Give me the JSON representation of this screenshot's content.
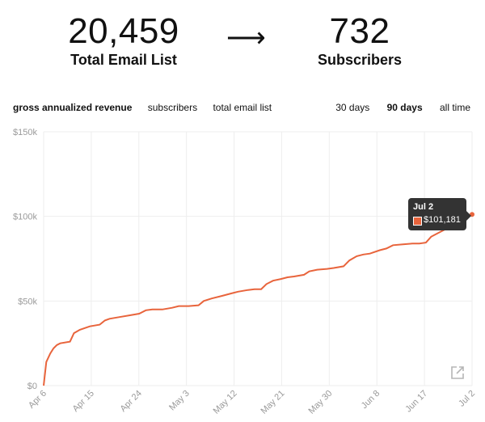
{
  "stats": {
    "left": {
      "value": "20,459",
      "label": "Total Email List"
    },
    "arrow": "⟶",
    "right": {
      "value": "732",
      "label": "Subscribers"
    }
  },
  "metric_tabs": [
    {
      "label": "gross annualized revenue",
      "active": true
    },
    {
      "label": "subscribers",
      "active": false
    },
    {
      "label": "total email list",
      "active": false
    }
  ],
  "range_tabs": [
    {
      "label": "30 days",
      "active": false
    },
    {
      "label": "90 days",
      "active": true
    },
    {
      "label": "all time",
      "active": false
    }
  ],
  "tooltip": {
    "date": "Jul 2",
    "value": "$101,181"
  },
  "colors": {
    "line": "#e8643c",
    "grid": "#eeeeee",
    "tooltip_bg": "#333333"
  },
  "icons": {
    "expand": "external-expand-icon"
  },
  "chart_data": {
    "type": "line",
    "ylim": [
      0,
      150000
    ],
    "y_ticks": [
      {
        "value": 0,
        "label": "$0"
      },
      {
        "value": 50000,
        "label": "$50k"
      },
      {
        "value": 100000,
        "label": "$100k"
      },
      {
        "value": 150000,
        "label": "$150k"
      }
    ],
    "x_ticks": [
      "Apr 6",
      "Apr 15",
      "Apr 24",
      "May 3",
      "May 12",
      "May 21",
      "May 30",
      "Jun 8",
      "Jun 17",
      "Jul 2"
    ],
    "grid": true,
    "series": [
      {
        "values": [
          [
            0,
            0
          ],
          [
            0.4,
            14000
          ],
          [
            1,
            19000
          ],
          [
            1.5,
            22000
          ],
          [
            2,
            24000
          ],
          [
            2.5,
            25000
          ],
          [
            4,
            26000
          ],
          [
            4.6,
            31000
          ],
          [
            5.5,
            33000
          ],
          [
            7,
            35000
          ],
          [
            8.5,
            36000
          ],
          [
            9.3,
            38500
          ],
          [
            10,
            39500
          ],
          [
            11.5,
            40500
          ],
          [
            13,
            41500
          ],
          [
            14.5,
            42500
          ],
          [
            15.5,
            44500
          ],
          [
            16.5,
            45000
          ],
          [
            18,
            45000
          ],
          [
            19.5,
            46000
          ],
          [
            20.5,
            47000
          ],
          [
            22,
            47000
          ],
          [
            23.5,
            47500
          ],
          [
            24.3,
            50000
          ],
          [
            25.5,
            51500
          ],
          [
            27,
            53000
          ],
          [
            28.5,
            54500
          ],
          [
            29.5,
            55500
          ],
          [
            31,
            56500
          ],
          [
            32,
            57000
          ],
          [
            33,
            57000
          ],
          [
            33.8,
            60000
          ],
          [
            34.8,
            62000
          ],
          [
            36,
            63000
          ],
          [
            37,
            64000
          ],
          [
            38,
            64500
          ],
          [
            39.5,
            65500
          ],
          [
            40.3,
            67500
          ],
          [
            41.5,
            68500
          ],
          [
            43,
            69000
          ],
          [
            44,
            69500
          ],
          [
            45.5,
            70500
          ],
          [
            46.4,
            74000
          ],
          [
            47.5,
            76500
          ],
          [
            48.5,
            77500
          ],
          [
            49.5,
            78000
          ],
          [
            51,
            80000
          ],
          [
            52,
            81000
          ],
          [
            53,
            83000
          ],
          [
            54.5,
            83500
          ],
          [
            56,
            84000
          ],
          [
            57,
            84000
          ],
          [
            58,
            84500
          ],
          [
            58.8,
            88000
          ],
          [
            60,
            90500
          ],
          [
            61,
            92500
          ],
          [
            62,
            94000
          ],
          [
            62.7,
            96000
          ],
          [
            63.6,
            98500
          ],
          [
            64.5,
            100500
          ],
          [
            65,
            101181
          ]
        ]
      }
    ]
  }
}
